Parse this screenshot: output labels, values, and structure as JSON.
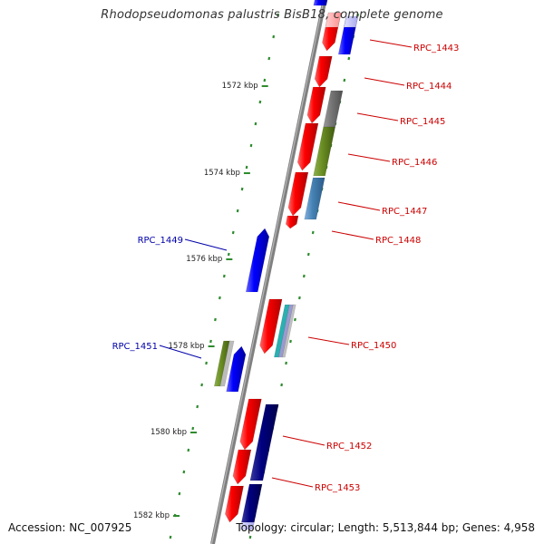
{
  "title": "Rhodopseudomonas palustris BisB18, complete genome",
  "footer": {
    "accession": "Accession: NC_007925",
    "summary": "Topology: circular; Length: 5,513,844 bp; Genes: 4,958"
  },
  "colors": {
    "backbone": "#808080",
    "tick": "#2e8b2e",
    "label_red": "#cc0000",
    "label_blue": "#0000aa"
  },
  "ticks": [
    {
      "label": "1572 kbp"
    },
    {
      "label": "1574 kbp"
    },
    {
      "label": "1576 kbp"
    },
    {
      "label": "1578 kbp"
    },
    {
      "label": "1580 kbp"
    },
    {
      "label": "1582 kbp"
    }
  ],
  "gene_labels": [
    {
      "text": "RPC_1443",
      "color": "red"
    },
    {
      "text": "RPC_1444",
      "color": "red"
    },
    {
      "text": "RPC_1445",
      "color": "red"
    },
    {
      "text": "RPC_1446",
      "color": "red"
    },
    {
      "text": "RPC_1447",
      "color": "red"
    },
    {
      "text": "RPC_1448",
      "color": "red"
    },
    {
      "text": "RPC_1449",
      "color": "blue"
    },
    {
      "text": "RPC_1450",
      "color": "red"
    },
    {
      "text": "RPC_1451",
      "color": "blue"
    },
    {
      "text": "RPC_1452",
      "color": "red"
    },
    {
      "text": "RPC_1453",
      "color": "red"
    }
  ]
}
